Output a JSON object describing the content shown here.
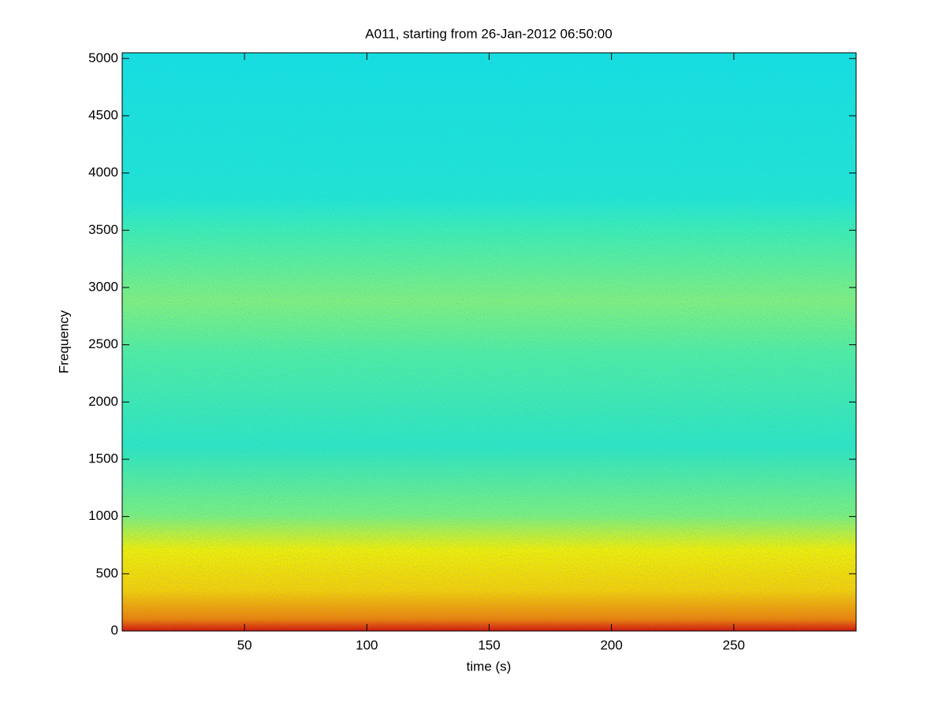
{
  "chart_data": {
    "type": "spectrogram",
    "title": "A011, starting from 26-Jan-2012 06:50:00",
    "x_label": "time (s)",
    "y_label": "Frequency",
    "xlim": [
      0,
      300
    ],
    "ylim": [
      0,
      5050
    ],
    "xticks": [
      50,
      100,
      150,
      200,
      250
    ],
    "yticks": [
      0,
      500,
      1000,
      1500,
      2000,
      2500,
      3000,
      3500,
      4000,
      4500,
      5000
    ]
  }
}
